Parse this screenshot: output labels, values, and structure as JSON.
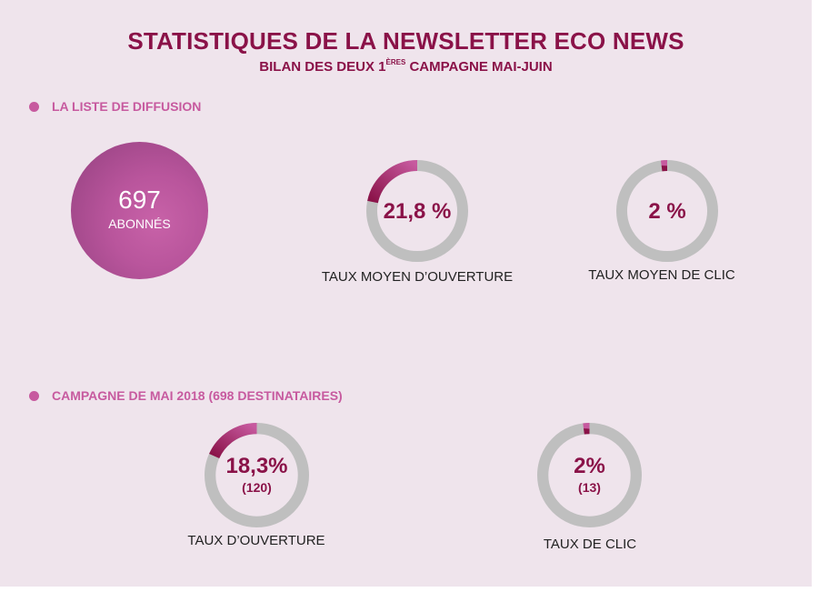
{
  "title": "STATISTIQUES DE LA NEWSLETTER ECO NEWS",
  "subtitle_pre": "BILAN DES DEUX 1",
  "subtitle_sup": "ÈRES",
  "subtitle_post": " CAMPAGNE MAI-JUIN",
  "section1": "LA LISTE DE DIFFUSION",
  "section2": "CAMPAGNE DE MAI 2018 (698 DESTINATAIRES)",
  "subscribers": {
    "value": "697",
    "label": "ABONNÉS"
  },
  "colors": {
    "background": "#efe4ec",
    "accent": "#8a1248",
    "bullet": "#c75a9f",
    "ring": "#bfbfbf",
    "arc_start": "#8a1248",
    "arc_end": "#c75a9f"
  },
  "chart_data": [
    {
      "type": "pie",
      "title": "TAUX MOYEN D’OUVERTURE",
      "value_label": "21,8 %",
      "sub_label": "",
      "percent": 21.8
    },
    {
      "type": "pie",
      "title": "TAUX MOYEN DE CLIC",
      "value_label": "2 %",
      "sub_label": "",
      "percent": 2
    },
    {
      "type": "pie",
      "title": "TAUX D’OUVERTURE",
      "value_label": "18,3%",
      "sub_label": "(120)",
      "percent": 18.3
    },
    {
      "type": "pie",
      "title": "TAUX DE CLIC",
      "value_label": "2%",
      "sub_label": "(13)",
      "percent": 2
    }
  ]
}
